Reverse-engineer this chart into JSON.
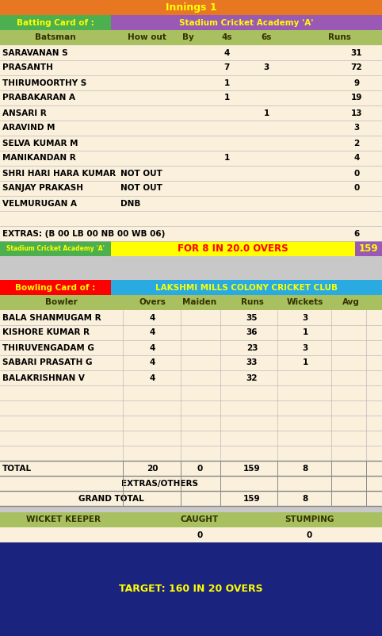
{
  "title": "Innings 1",
  "title_bg": "#E87722",
  "title_color": "#FFFF00",
  "batting_label": "Batting Card of :",
  "batting_label_bg": "#4CAF50",
  "batting_label_color": "#FFFF00",
  "batting_team": "Stadium Cricket Academy 'A'",
  "batting_team_bg": "#9B59B6",
  "batting_team_color": "#FFFF00",
  "bat_header_bg": "#A8C060",
  "bat_header_color": "#333300",
  "bat_headers": [
    "Batsman",
    "How out",
    "By",
    "4s",
    "6s",
    "Runs"
  ],
  "batsmen": [
    [
      "SARAVANAN S",
      "",
      "",
      "4",
      "",
      "31"
    ],
    [
      "PRASANTH",
      "",
      "",
      "7",
      "3",
      "72"
    ],
    [
      "THIRUMOORTHY S",
      "",
      "",
      "1",
      "",
      "9"
    ],
    [
      "PRABAKARAN A",
      "",
      "",
      "1",
      "",
      "19"
    ],
    [
      "ANSARI R",
      "",
      "",
      "",
      "1",
      "13"
    ],
    [
      "ARAVIND M",
      "",
      "",
      "",
      "",
      "3"
    ],
    [
      "SELVA KUMAR M",
      "",
      "",
      "",
      "",
      "2"
    ],
    [
      "MANIKANDAN R",
      "",
      "",
      "1",
      "",
      "4"
    ],
    [
      "SHRI HARI HARA KUMAR",
      "NOT OUT",
      "",
      "",
      "",
      "0"
    ],
    [
      "SANJAY PRAKASH",
      "NOT OUT",
      "",
      "",
      "",
      "0"
    ],
    [
      "VELMURUGAN A",
      "DNB",
      "",
      "",
      "",
      ""
    ]
  ],
  "bat_row_bg": "#FAF0DC",
  "bat_row_color": "#000000",
  "extras_text": "EXTRAS: (B 00 LB 00 NB 00 WB 06)",
  "extras_runs": "6",
  "extras_bg": "#FAF0DC",
  "score_team": "Stadium Cricket Academy 'A'",
  "score_team_bg": "#4CAF50",
  "score_team_color": "#FFFF00",
  "score_detail": "FOR 8 IN 20.0 OVERS",
  "score_detail_bg": "#FFFF00",
  "score_detail_color": "#FF0000",
  "score_runs": "159",
  "score_runs_bg": "#9B59B6",
  "score_runs_color": "#FFFF00",
  "separator_bg": "#C8C8C8",
  "bowling_label": "Bowling Card of :",
  "bowling_label_bg": "#FF0000",
  "bowling_label_color": "#FFFF00",
  "bowling_team": "LAKSHMI MILLS COLONY CRICKET CLUB",
  "bowling_team_bg": "#29ABE2",
  "bowling_team_color": "#FFFF00",
  "bowl_header_bg": "#A8C060",
  "bowl_header_color": "#333300",
  "bowl_headers": [
    "Bowler",
    "Overs",
    "Maiden",
    "Runs",
    "Wickets",
    "Avg"
  ],
  "bowlers": [
    [
      "BALA SHANMUGAM R",
      "4",
      "",
      "35",
      "3",
      ""
    ],
    [
      "KISHORE KUMAR R",
      "4",
      "",
      "36",
      "1",
      ""
    ],
    [
      "THIRUVENGADAM G",
      "4",
      "",
      "23",
      "3",
      ""
    ],
    [
      "SABARI PRASATH G",
      "4",
      "",
      "33",
      "1",
      ""
    ],
    [
      "BALAKRISHNAN V",
      "4",
      "",
      "32",
      "",
      ""
    ]
  ],
  "bowl_row_bg": "#FAF0DC",
  "bowl_row_color": "#000000",
  "total_row": [
    "TOTAL",
    "20",
    "0",
    "159",
    "8",
    ""
  ],
  "extras_others_label": "EXTRAS/OTHERS",
  "grand_total_label": "GRAND TOTAL",
  "grand_total_runs": "159",
  "grand_total_wkts": "8",
  "summary_row_bg": "#FAF0DC",
  "wk_label": "WICKET KEEPER",
  "wk_caught": "CAUGHT",
  "wk_stumping": "STUMPING",
  "wk_caught_val": "0",
  "wk_stumping_val": "0",
  "wk_header_bg": "#A8C060",
  "wk_header_color": "#333300",
  "wk_val_bg": "#FAF0DC",
  "target_text": "TARGET: 160 IN 20 OVERS",
  "target_bg": "#1A237E",
  "target_color": "#FFFF00"
}
